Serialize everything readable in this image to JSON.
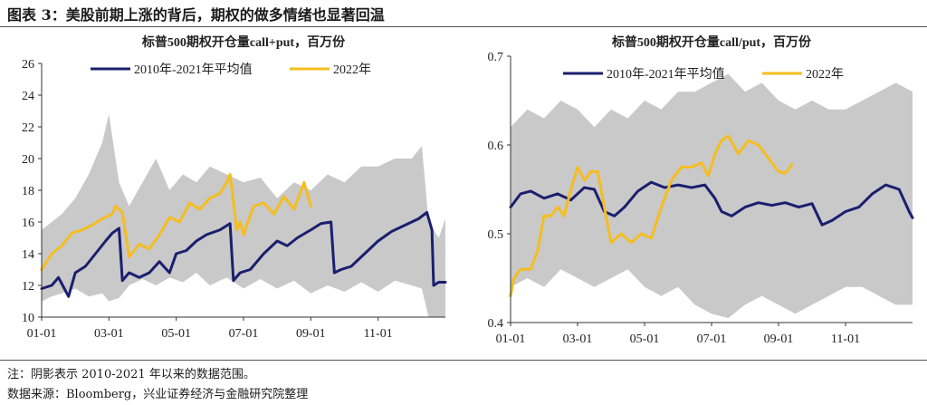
{
  "figure": {
    "title": "图表 3：美股前期上涨的背后，期权的做多情绪也显著回温",
    "note": "注：阴影表示 2010-2021 年以来的数据范围。",
    "source": "数据来源：Bloomberg，兴业证券经济与金融研究院整理"
  },
  "colors": {
    "avg": "#1a1f6e",
    "year2022": "#f5bd1f",
    "range": "#c9c9c9",
    "axis": "#333333"
  },
  "chart_data": [
    {
      "type": "area",
      "title": "标普500期权开仓量call+put，百万份",
      "xlabel": "",
      "ylabel": "",
      "ylim": [
        10,
        26
      ],
      "yticks": [
        10,
        12,
        14,
        16,
        18,
        20,
        22,
        24,
        26
      ],
      "xlim": [
        0,
        12
      ],
      "xticks": [
        0,
        2,
        4,
        6,
        8,
        10
      ],
      "xtick_labels": [
        "01-01",
        "03-01",
        "05-01",
        "07-01",
        "09-01",
        "11-01"
      ],
      "legend": [
        "2010年-2021年平均值",
        "2022年"
      ],
      "legend_position": "top",
      "band": {
        "name": "2010-2021年数据范围",
        "x": [
          0,
          0.3,
          0.6,
          1,
          1.4,
          1.8,
          2,
          2.3,
          2.6,
          3,
          3.4,
          3.8,
          4.2,
          4.6,
          5,
          5.5,
          6,
          6.5,
          7,
          7.5,
          8,
          8.5,
          9,
          9.5,
          10,
          10.5,
          11,
          11.3,
          11.5,
          11.8,
          12
        ],
        "low": [
          11.0,
          11.3,
          11.5,
          11.8,
          11.3,
          11.5,
          11.0,
          11.2,
          12.0,
          12.4,
          12.0,
          12.5,
          12.2,
          12.8,
          12.0,
          12.5,
          11.8,
          12.4,
          11.8,
          12.3,
          11.5,
          12.0,
          11.6,
          12.2,
          11.6,
          12.3,
          12.0,
          11.8,
          10.0,
          10.0,
          10.0
        ],
        "high": [
          15.5,
          16.0,
          16.5,
          17.5,
          19.0,
          21.0,
          22.8,
          18.5,
          17.0,
          18.5,
          20.0,
          18.0,
          19.0,
          18.5,
          19.5,
          19.0,
          18.5,
          18.8,
          17.5,
          18.5,
          18.0,
          19.0,
          18.5,
          19.5,
          19.5,
          20.0,
          20.0,
          20.8,
          16.0,
          15.0,
          16.2
        ]
      },
      "series": [
        {
          "name": "2010年-2021年平均值",
          "x": [
            0,
            0.3,
            0.5,
            0.8,
            1.0,
            1.3,
            1.6,
            1.9,
            2.1,
            2.3,
            2.4,
            2.6,
            2.9,
            3.2,
            3.5,
            3.8,
            4.0,
            4.3,
            4.6,
            4.9,
            5.3,
            5.6,
            5.7,
            5.9,
            6.2,
            6.6,
            7.0,
            7.3,
            7.6,
            8.0,
            8.3,
            8.6,
            8.7,
            8.9,
            9.2,
            9.6,
            10.0,
            10.4,
            10.8,
            11.2,
            11.45,
            11.6,
            11.65,
            11.8,
            12.0
          ],
          "values": [
            11.8,
            12.0,
            12.5,
            11.3,
            12.8,
            13.2,
            14.0,
            14.8,
            15.3,
            15.6,
            12.3,
            12.8,
            12.5,
            12.8,
            13.5,
            12.8,
            14.0,
            14.2,
            14.8,
            15.2,
            15.5,
            15.9,
            12.3,
            12.8,
            13.0,
            14.0,
            14.8,
            14.5,
            15.0,
            15.5,
            15.9,
            16.0,
            12.8,
            13.0,
            13.2,
            14.0,
            14.8,
            15.4,
            15.8,
            16.2,
            16.6,
            15.5,
            12.0,
            12.2,
            12.2
          ]
        },
        {
          "name": "2022年",
          "x": [
            0,
            0.3,
            0.6,
            0.9,
            1.2,
            1.5,
            1.8,
            2.1,
            2.2,
            2.4,
            2.6,
            2.9,
            3.2,
            3.5,
            3.8,
            4.1,
            4.4,
            4.7,
            5.0,
            5.3,
            5.5,
            5.6,
            5.8,
            5.9,
            6.0,
            6.3,
            6.6,
            6.9,
            7.2,
            7.5,
            7.8,
            8.0
          ],
          "values": [
            13.0,
            14.0,
            14.5,
            15.3,
            15.5,
            15.8,
            16.2,
            16.5,
            17.0,
            16.6,
            13.8,
            14.6,
            14.3,
            15.2,
            16.3,
            16.0,
            17.2,
            16.8,
            17.5,
            17.8,
            18.5,
            19.0,
            15.5,
            16.0,
            15.2,
            17.0,
            17.2,
            16.5,
            17.6,
            16.8,
            18.5,
            17.0
          ]
        }
      ]
    },
    {
      "type": "area",
      "title": "标普500期权开仓量call/put，百万份",
      "xlabel": "",
      "ylabel": "",
      "ylim": [
        0.4,
        0.7
      ],
      "yticks": [
        0.4,
        0.5,
        0.6,
        0.7
      ],
      "xlim": [
        0,
        12
      ],
      "xticks": [
        0,
        2,
        4,
        6,
        8,
        10
      ],
      "xtick_labels": [
        "01-01",
        "03-01",
        "05-01",
        "07-01",
        "09-01",
        "11-01"
      ],
      "legend": [
        "2010年-2021年平均值",
        "2022年"
      ],
      "legend_position": "top",
      "band": {
        "name": "2010-2021年数据范围",
        "x": [
          0,
          0.5,
          1,
          1.5,
          2,
          2.5,
          3,
          3.5,
          4,
          4.5,
          5,
          5.5,
          6,
          6.5,
          7,
          7.5,
          8,
          8.5,
          9,
          9.5,
          10,
          10.5,
          11,
          11.5,
          12
        ],
        "low": [
          0.44,
          0.45,
          0.44,
          0.46,
          0.45,
          0.44,
          0.45,
          0.46,
          0.44,
          0.43,
          0.44,
          0.42,
          0.41,
          0.405,
          0.42,
          0.43,
          0.42,
          0.41,
          0.42,
          0.43,
          0.44,
          0.44,
          0.43,
          0.42,
          0.42
        ],
        "high": [
          0.62,
          0.64,
          0.63,
          0.65,
          0.64,
          0.62,
          0.64,
          0.63,
          0.65,
          0.64,
          0.66,
          0.66,
          0.67,
          0.68,
          0.66,
          0.67,
          0.65,
          0.64,
          0.65,
          0.64,
          0.64,
          0.65,
          0.66,
          0.67,
          0.66
        ]
      },
      "series": [
        {
          "name": "2010年-2021年平均值",
          "x": [
            0,
            0.3,
            0.6,
            1.0,
            1.4,
            1.8,
            2.2,
            2.5,
            2.8,
            3.1,
            3.4,
            3.8,
            4.2,
            4.6,
            5.0,
            5.4,
            5.8,
            6.1,
            6.3,
            6.6,
            7.0,
            7.4,
            7.8,
            8.2,
            8.6,
            9.0,
            9.3,
            9.6,
            10.0,
            10.4,
            10.8,
            11.2,
            11.6,
            11.9,
            12.0
          ],
          "values": [
            0.53,
            0.545,
            0.548,
            0.54,
            0.545,
            0.538,
            0.552,
            0.55,
            0.525,
            0.52,
            0.53,
            0.548,
            0.558,
            0.552,
            0.555,
            0.552,
            0.555,
            0.54,
            0.525,
            0.52,
            0.53,
            0.535,
            0.532,
            0.535,
            0.53,
            0.534,
            0.51,
            0.515,
            0.525,
            0.53,
            0.545,
            0.555,
            0.55,
            0.525,
            0.518
          ]
        },
        {
          "name": "2022年",
          "x": [
            0,
            0.1,
            0.3,
            0.6,
            0.8,
            1.0,
            1.2,
            1.4,
            1.6,
            1.8,
            2.0,
            2.2,
            2.4,
            2.6,
            2.8,
            3.0,
            3.3,
            3.6,
            3.9,
            4.2,
            4.5,
            4.8,
            5.1,
            5.4,
            5.7,
            5.9,
            6.1,
            6.3,
            6.5,
            6.8,
            7.1,
            7.4,
            7.7,
            8.0,
            8.2,
            8.4
          ],
          "values": [
            0.43,
            0.45,
            0.46,
            0.46,
            0.48,
            0.52,
            0.52,
            0.53,
            0.52,
            0.55,
            0.575,
            0.56,
            0.57,
            0.57,
            0.53,
            0.49,
            0.5,
            0.49,
            0.5,
            0.495,
            0.53,
            0.56,
            0.575,
            0.575,
            0.58,
            0.565,
            0.59,
            0.605,
            0.61,
            0.59,
            0.605,
            0.6,
            0.585,
            0.57,
            0.568,
            0.578
          ]
        }
      ]
    }
  ]
}
